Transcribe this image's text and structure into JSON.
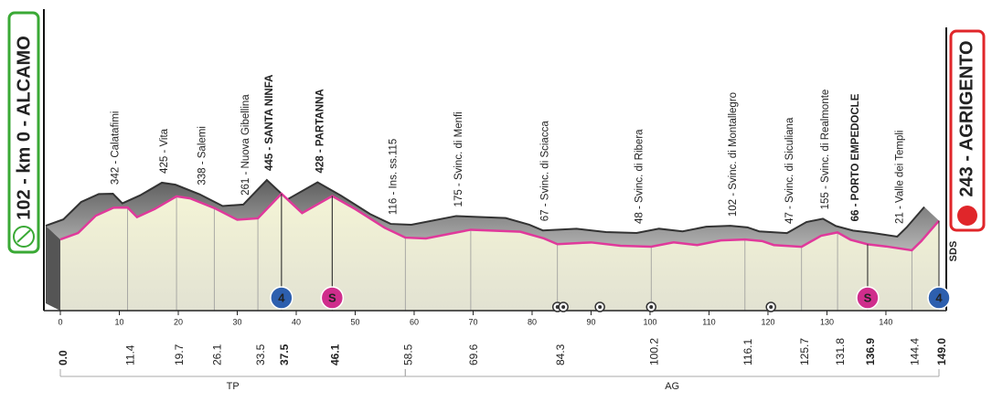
{
  "chart_data": {
    "type": "profile",
    "start": {
      "label": "102 - km 0 - ALCAMO",
      "km": {
        "value": 0,
        "label": "0.0"
      }
    },
    "finish": {
      "label": "243 - AGRIGENTO",
      "km": {
        "value": 149,
        "label": "149.0"
      }
    },
    "sponsor": "SDS",
    "xlim": [
      0,
      149
    ],
    "xticks": [
      0,
      10,
      20,
      30,
      40,
      50,
      60,
      70,
      80,
      90,
      100,
      110,
      120,
      130,
      140
    ],
    "x": [
      0,
      3,
      6,
      9,
      11.4,
      13,
      16,
      19.7,
      22,
      26.1,
      30,
      33.5,
      37.5,
      41,
      46.1,
      50,
      55,
      58.5,
      62,
      69.6,
      78,
      82,
      84.3,
      90,
      95,
      100.2,
      104,
      108,
      112,
      116.1,
      119,
      121,
      125.7,
      129,
      131.8,
      134,
      136.9,
      140,
      144.4,
      146,
      149
    ],
    "values": [
      102,
      150,
      280,
      340,
      342,
      270,
      330,
      425,
      410,
      338,
      250,
      261,
      445,
      300,
      428,
      330,
      190,
      116,
      110,
      175,
      160,
      110,
      67,
      80,
      55,
      48,
      80,
      60,
      95,
      102,
      90,
      60,
      47,
      130,
      155,
      100,
      66,
      50,
      21,
      90,
      243
    ],
    "line_color": "#e0399b",
    "places": [
      {
        "km": 11.4,
        "label": "342 - Calatafimi",
        "bold": false
      },
      {
        "km": 19.7,
        "label": "425 - Vita",
        "bold": false
      },
      {
        "km": 26.1,
        "label": "338 - Salemi",
        "bold": false
      },
      {
        "km": 33.5,
        "label": "261 - Nuova Gibellina",
        "bold": false
      },
      {
        "km": 37.5,
        "label": "445 - SANTA NINFA",
        "bold": true
      },
      {
        "km": 46.1,
        "label": "428 - PARTANNA",
        "bold": true
      },
      {
        "km": 58.5,
        "label": "116 - Ins. ss.115",
        "bold": false
      },
      {
        "km": 69.6,
        "label": "175 - Svinc. di Menfi",
        "bold": false
      },
      {
        "km": 84.3,
        "label": "67 - Svinc. di Sciacca",
        "bold": false
      },
      {
        "km": 100.2,
        "label": "48 - Svinc. di Ribera",
        "bold": false
      },
      {
        "km": 116.1,
        "label": "102 - Svinc. di Montallegro",
        "bold": false
      },
      {
        "km": 125.7,
        "label": "47 - Svinc. di Siculiana",
        "bold": false
      },
      {
        "km": 131.8,
        "label": "155 - Svinc. di Realmonte",
        "bold": false
      },
      {
        "km": 136.9,
        "label": "66 - PORTO EMPEDOCLE",
        "bold": true
      },
      {
        "km": 144.4,
        "label": "21 - Valle dei Templi",
        "bold": false
      }
    ],
    "markers": [
      {
        "km": 37.5,
        "symbol": "4",
        "color": "#2d5fae"
      },
      {
        "km": 46.1,
        "symbol": "S",
        "color": "#cf2d8c"
      },
      {
        "km": 136.9,
        "symbol": "S",
        "color": "#cf2d8c"
      },
      {
        "km": 149,
        "symbol": "4",
        "color": "#2d5fae"
      }
    ],
    "tunnels_km": [
      84.3,
      85.3,
      91.5,
      100.2,
      120.5
    ],
    "sections": [
      {
        "label": "TP",
        "from": 0,
        "to": 58.5
      },
      {
        "label": "AG",
        "from": 58.5,
        "to": 149
      }
    ]
  }
}
